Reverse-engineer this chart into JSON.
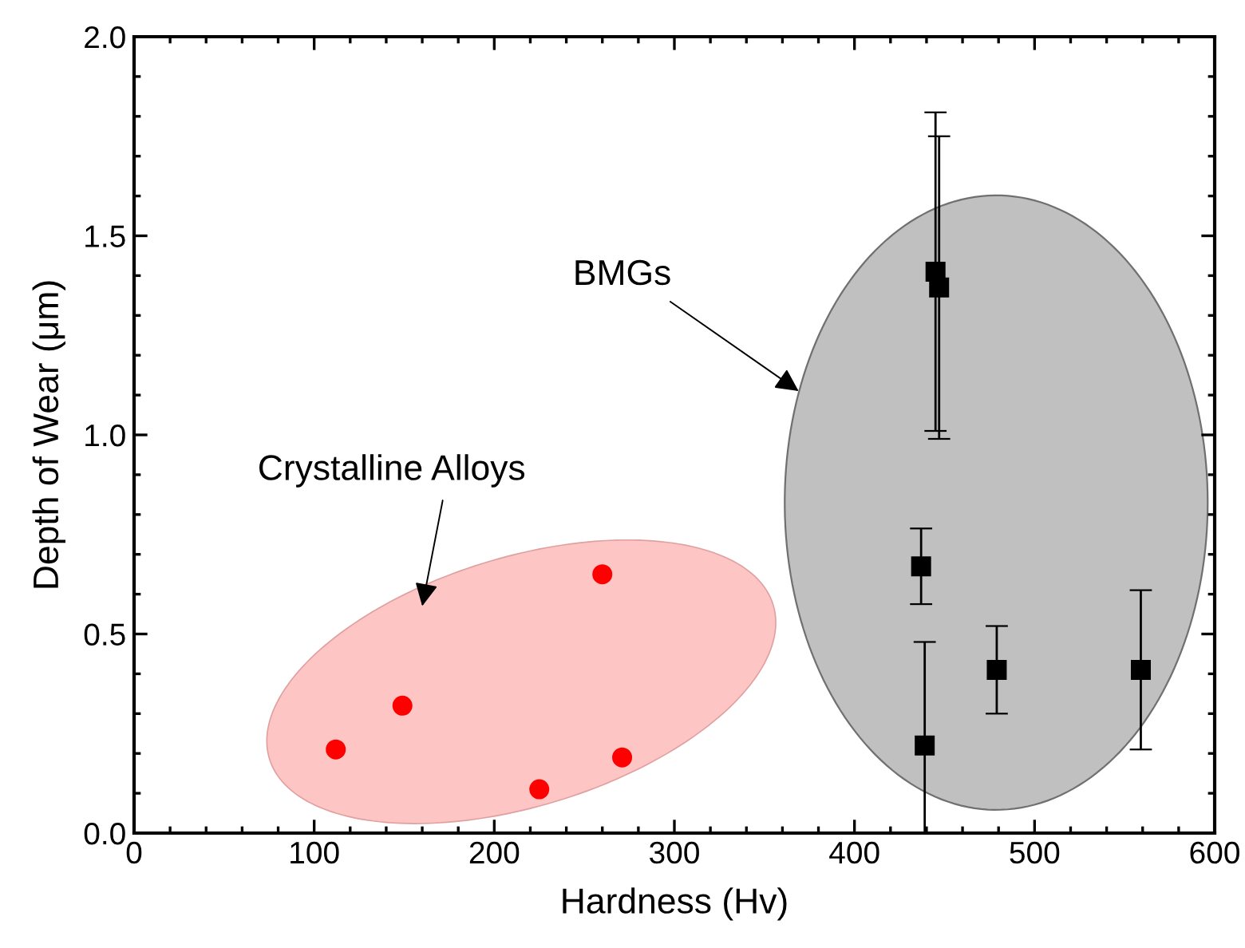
{
  "chart_data": {
    "type": "scatter",
    "xlabel": "Hardness (Hv)",
    "ylabel": "Depth of Wear (μm)",
    "xlim": [
      0,
      600
    ],
    "xticks": [
      0,
      100,
      200,
      300,
      400,
      500,
      600
    ],
    "ylim": [
      0,
      2.0
    ],
    "yticks": [
      {
        "value": 0,
        "label": "0.0"
      },
      {
        "value": 0.5,
        "label": "0.5"
      },
      {
        "value": 1.0,
        "label": "1.0"
      },
      {
        "value": 1.5,
        "label": "1.5"
      },
      {
        "value": 2.0,
        "label": "2.0"
      }
    ],
    "grid": false,
    "legend": false,
    "series": [
      {
        "color": "#ff0000",
        "marker": "circle",
        "x": [
          112,
          149,
          225,
          260,
          271
        ],
        "values": [
          0.21,
          0.32,
          0.11,
          0.65,
          0.19
        ]
      },
      {
        "color": "#000000",
        "marker": "square",
        "x": [
          445,
          447,
          437,
          439,
          479,
          559
        ],
        "values": [
          1.41,
          1.37,
          0.67,
          0.22,
          0.41,
          0.41
        ],
        "errors": [
          [
            1.01,
            1.81
          ],
          [
            0.99,
            1.75
          ],
          [
            0.575,
            0.765
          ],
          [
            0.0,
            0.48
          ],
          [
            0.3,
            0.52
          ],
          [
            0.21,
            0.61
          ]
        ]
      }
    ],
    "annotations": [
      "BMGs",
      "Crystalline Alloys"
    ]
  }
}
